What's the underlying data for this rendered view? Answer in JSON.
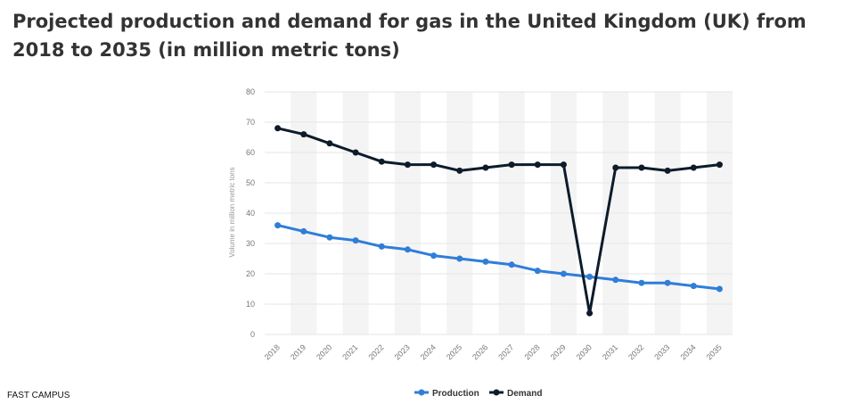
{
  "title": "Projected production and demand for gas in the United Kingdom (UK) from 2018 to 2035 (in million metric tons)",
  "footer": "FAST CAMPUS",
  "colors": {
    "production": "#2f7ed8",
    "demand": "#0d1b2a",
    "band": "#f4f4f4",
    "grid": "#e6e6e6"
  },
  "chart_data": {
    "type": "line",
    "title": "Projected production and demand for gas in the United Kingdom (UK) from 2018 to 2035 (in million metric tons)",
    "xlabel": "",
    "ylabel": "Volume in million metric tons",
    "x": [
      "2018",
      "2019",
      "2020",
      "2021",
      "2022",
      "2023",
      "2024",
      "2025",
      "2026",
      "2027",
      "2028",
      "2029",
      "2030",
      "2031",
      "2032",
      "2033",
      "2034",
      "2035"
    ],
    "ylim": [
      0,
      80
    ],
    "yticks": [
      0,
      10,
      20,
      30,
      40,
      50,
      60,
      70,
      80
    ],
    "grid": true,
    "legend": "bottom-center",
    "series": [
      {
        "name": "Production",
        "values": [
          36,
          34,
          32,
          31,
          29,
          28,
          26,
          25,
          24,
          23,
          21,
          20,
          19,
          18,
          17,
          17,
          16,
          15
        ]
      },
      {
        "name": "Demand",
        "values": [
          68,
          66,
          63,
          60,
          57,
          56,
          56,
          54,
          55,
          56,
          56,
          56,
          7,
          55,
          55,
          54,
          55,
          56
        ]
      }
    ]
  }
}
